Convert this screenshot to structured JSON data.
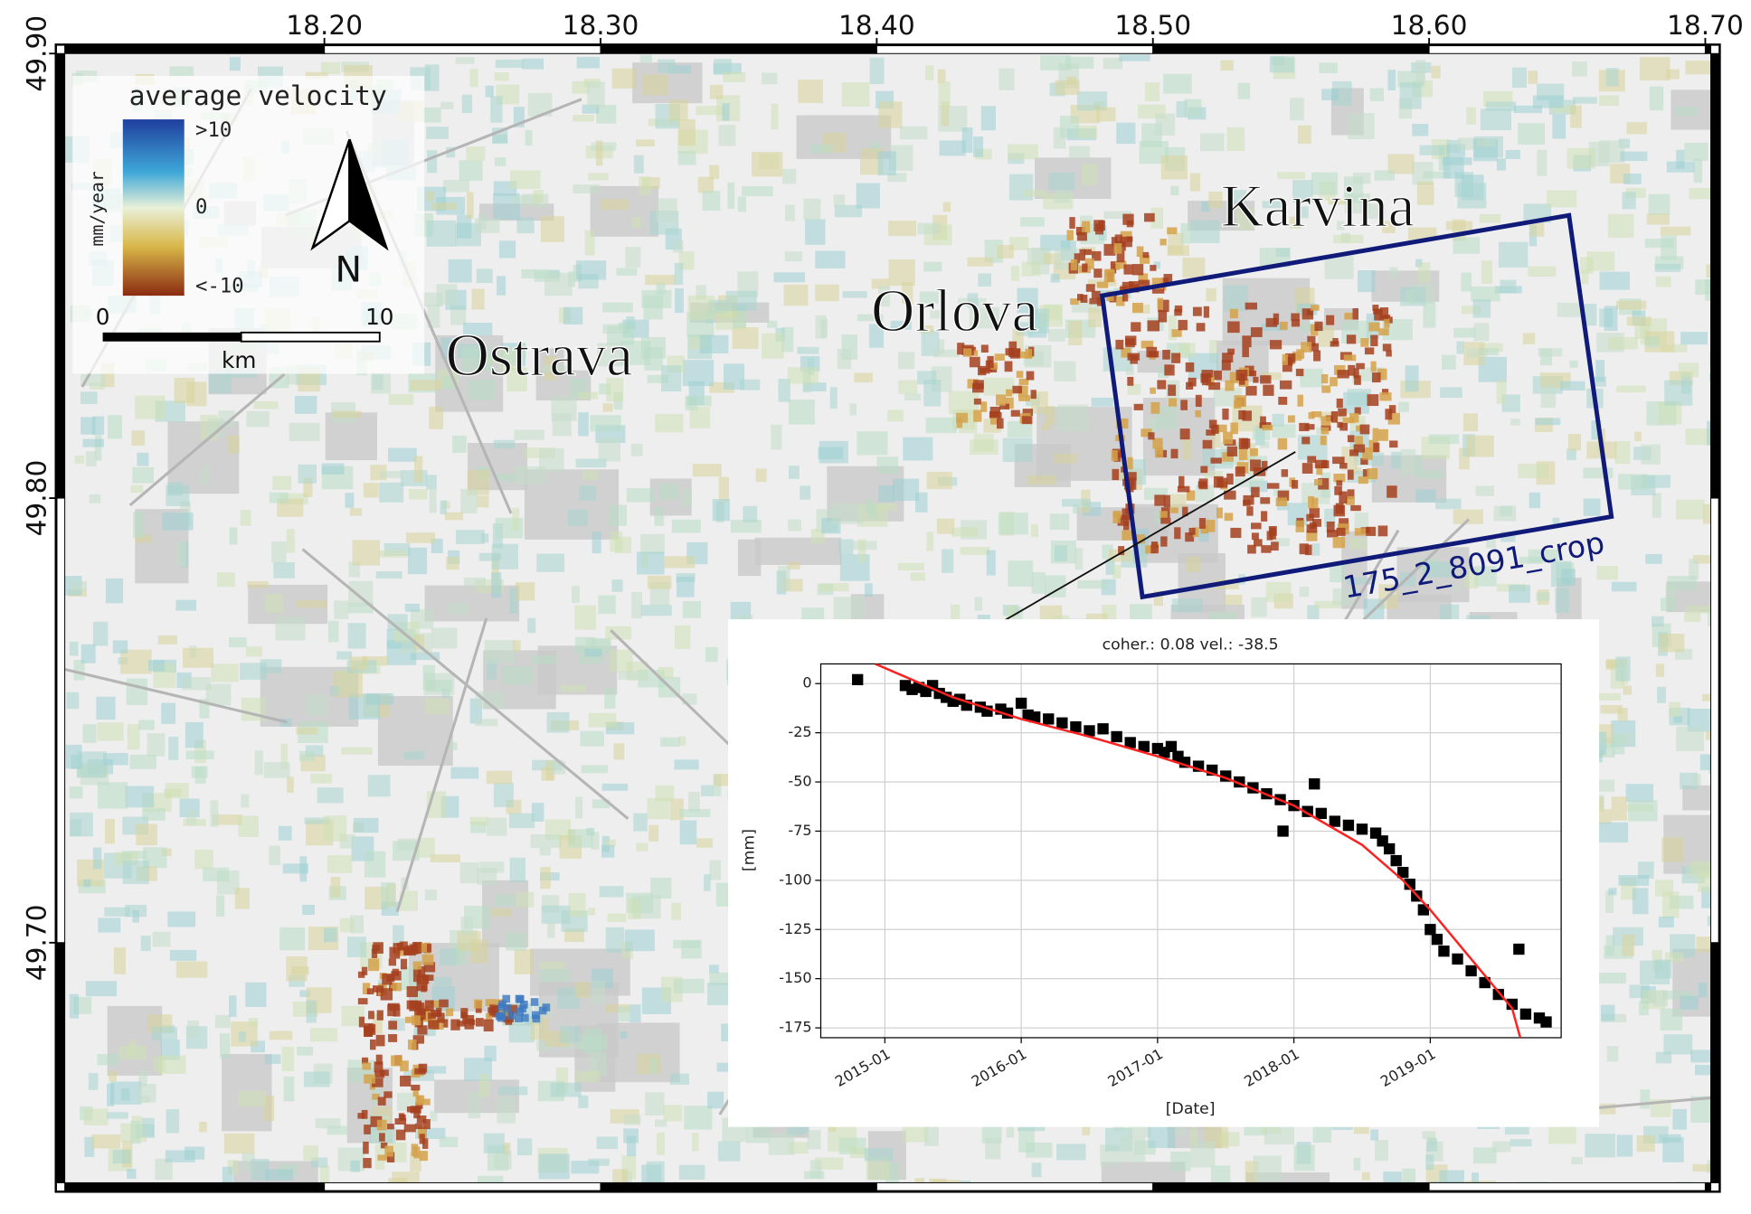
{
  "map": {
    "longitude_ticks": [
      {
        "value": 18.2,
        "label": "18.20"
      },
      {
        "value": 18.3,
        "label": "18.30"
      },
      {
        "value": 18.4,
        "label": "18.40"
      },
      {
        "value": 18.5,
        "label": "18.50"
      },
      {
        "value": 18.6,
        "label": "18.60"
      },
      {
        "value": 18.7,
        "label": "18.70"
      }
    ],
    "latitude_ticks": [
      {
        "value": 49.9,
        "label": "49.90"
      },
      {
        "value": 49.8,
        "label": "49.80"
      },
      {
        "value": 49.7,
        "label": "49.70"
      }
    ],
    "xlim": [
      18.106,
      18.702
    ],
    "ylim": [
      49.646,
      49.9
    ],
    "legend": {
      "title": "average velocity",
      "unit": "mm/year",
      "color_labels": [
        ">10",
        "0",
        "<-10"
      ],
      "north": "N",
      "scale_labels": [
        0,
        10
      ],
      "scale_unit": "km"
    },
    "places": [
      "Ostrava",
      "Orlova",
      "Karvina"
    ],
    "crop_label": "175_2_8091_crop"
  },
  "chart_data": {
    "type": "scatter",
    "title": "coher.: 0.08 vel.: -38.5",
    "x_label": "[Date]",
    "y_label": "[mm]",
    "xlim": [
      2014.53,
      2019.96
    ],
    "ylim": [
      -180,
      10
    ],
    "xticks": [
      {
        "value": 2015,
        "label": "2015-01"
      },
      {
        "value": 2016,
        "label": "2016-01"
      },
      {
        "value": 2017,
        "label": "2017-01"
      },
      {
        "value": 2018,
        "label": "2018-01"
      },
      {
        "value": 2019,
        "label": "2019-01"
      }
    ],
    "yticks": [
      0,
      -25,
      -50,
      -75,
      -100,
      -125,
      -150,
      -175
    ],
    "grid": true,
    "series": [
      {
        "type": "scatter",
        "color": "#000000",
        "x": [
          2014.8,
          2015.15,
          2015.2,
          2015.25,
          2015.3,
          2015.35,
          2015.4,
          2015.45,
          2015.5,
          2015.55,
          2015.6,
          2015.7,
          2015.75,
          2015.85,
          2015.9,
          2016.0,
          2016.05,
          2016.1,
          2016.2,
          2016.3,
          2016.4,
          2016.5,
          2016.6,
          2016.7,
          2016.8,
          2016.9,
          2017.0,
          2017.05,
          2017.1,
          2017.15,
          2017.2,
          2017.3,
          2017.4,
          2017.5,
          2017.6,
          2017.7,
          2017.8,
          2017.9,
          2017.92,
          2018.0,
          2018.1,
          2018.15,
          2018.2,
          2018.3,
          2018.4,
          2018.5,
          2018.6,
          2018.65,
          2018.7,
          2018.75,
          2018.8,
          2018.85,
          2018.9,
          2018.95,
          2019.0,
          2019.05,
          2019.1,
          2019.2,
          2019.3,
          2019.4,
          2019.5,
          2019.6,
          2019.65,
          2019.7,
          2019.8,
          2019.85
        ],
        "values": [
          2,
          -1,
          -3,
          -2,
          -4,
          -1,
          -5,
          -7,
          -9,
          -8,
          -11,
          -12,
          -14,
          -13,
          -15,
          -10,
          -16,
          -17,
          -18,
          -20,
          -22,
          -24,
          -23,
          -27,
          -30,
          -32,
          -33,
          -35,
          -32,
          -37,
          -40,
          -42,
          -44,
          -47,
          -50,
          -53,
          -56,
          -59,
          -75,
          -62,
          -65,
          -51,
          -66,
          -70,
          -72,
          -74,
          -76,
          -80,
          -84,
          -90,
          -96,
          -102,
          -108,
          -115,
          -125,
          -130,
          -136,
          -140,
          -146,
          -152,
          -158,
          -163,
          -135,
          -168,
          -170,
          -172
        ]
      },
      {
        "type": "line",
        "color": "#ff2020",
        "x": [
          2014.93,
          2015.5,
          2016.0,
          2016.5,
          2017.0,
          2017.5,
          2018.0,
          2018.5,
          2018.8,
          2019.0,
          2019.3,
          2019.6,
          2019.66
        ],
        "values": [
          10,
          -7,
          -18,
          -27,
          -37,
          -48,
          -62,
          -82,
          -100,
          -115,
          -140,
          -165,
          -180
        ]
      }
    ]
  }
}
